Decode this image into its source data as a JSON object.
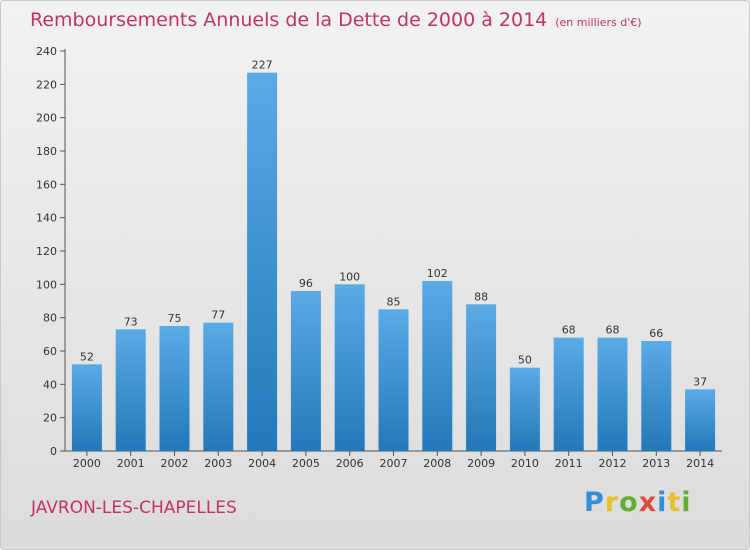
{
  "header": {
    "title": "Remboursements Annuels de la Dette de 2000 à 2014",
    "unit": "(en milliers d'€)"
  },
  "footer": {
    "municipality": "JAVRON-LES-CHAPELLES",
    "logo": "Proxiti"
  },
  "colors": {
    "title": "#c4335c",
    "bar_top": "#5aabe6",
    "bar_bottom": "#2378b9"
  },
  "chart_data": {
    "type": "bar",
    "title": "Remboursements Annuels de la Dette de 2000 à 2014",
    "categories": [
      "2000",
      "2001",
      "2002",
      "2003",
      "2004",
      "2005",
      "2006",
      "2007",
      "2008",
      "2009",
      "2010",
      "2011",
      "2012",
      "2013",
      "2014"
    ],
    "values": [
      52,
      73,
      75,
      77,
      227,
      96,
      100,
      85,
      102,
      88,
      50,
      68,
      68,
      66,
      37
    ],
    "ylim": [
      0,
      240
    ],
    "yticks": [
      0,
      20,
      40,
      60,
      80,
      100,
      120,
      140,
      160,
      180,
      200,
      220,
      240
    ],
    "grid": false,
    "data_labels": true
  }
}
